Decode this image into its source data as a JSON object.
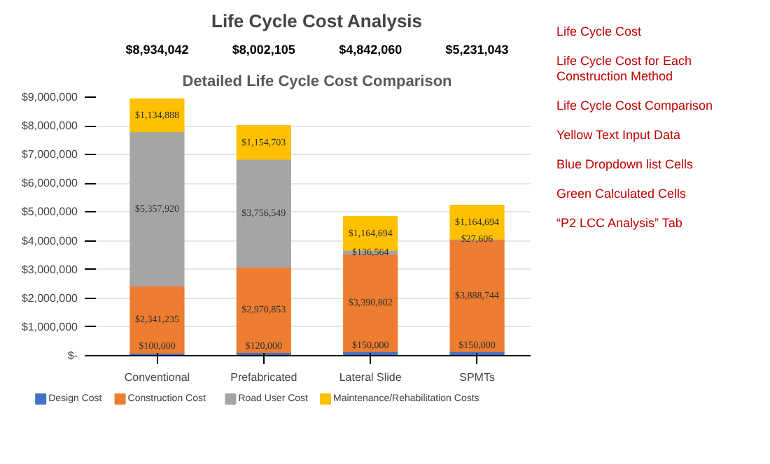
{
  "chart_data": {
    "type": "bar",
    "stacked": true,
    "title": "Life Cycle Cost Analysis",
    "subtitle": "Detailed Life Cycle Cost Comparison",
    "categories": [
      "Conventional",
      "Prefabricated",
      "Lateral Slide",
      "SPMTs"
    ],
    "series": [
      {
        "name": "Design Cost",
        "color": "#4472c4",
        "values": [
          100000,
          120000,
          150000,
          150000
        ],
        "value_labels": [
          "$100,000",
          "$120,000",
          "$150,000",
          "$150,000"
        ]
      },
      {
        "name": "Construction Cost",
        "color": "#ed7d31",
        "values": [
          2341235,
          2970853,
          3390802,
          3888744
        ],
        "value_labels": [
          "$2,341,235",
          "$2,970,853",
          "$3,390,802",
          "$3,888,744"
        ]
      },
      {
        "name": "Road User Cost",
        "color": "#a5a5a5",
        "values": [
          5357920,
          3756549,
          136564,
          27606
        ],
        "value_labels": [
          "$5,357,920",
          "$3,756,549",
          "$136,564",
          "$27,606"
        ]
      },
      {
        "name": "Maintenance/Rehabilitation Costs",
        "color": "#ffc000",
        "values": [
          1134888,
          1154703,
          1164694,
          1164694
        ],
        "value_labels": [
          "$1,134,888",
          "$1,154,703",
          "$1,164,694",
          "$1,164,694"
        ]
      }
    ],
    "ylim": [
      0,
      9000000
    ],
    "yticks": [
      {
        "value": 0,
        "label": "$-"
      },
      {
        "value": 1000000,
        "label": "$1,000,000"
      },
      {
        "value": 2000000,
        "label": "$2,000,000"
      },
      {
        "value": 3000000,
        "label": "$3,000,000"
      },
      {
        "value": 4000000,
        "label": "$4,000,000"
      },
      {
        "value": 5000000,
        "label": "$5,000,000"
      },
      {
        "value": 6000000,
        "label": "$6,000,000"
      },
      {
        "value": 7000000,
        "label": "$7,000,000"
      },
      {
        "value": 8000000,
        "label": "$8,000,000"
      },
      {
        "value": 9000000,
        "label": "$9,000,000"
      }
    ],
    "grid": "y",
    "legend": "bottom",
    "annotations": [
      "$8,934,042",
      "$8,002,105",
      "$4,842,060",
      "$5,231,043",
      "Life Cycle Cost",
      "Life Cycle Cost for Each Construction Method",
      "Life Cycle Cost Comparison",
      "Yellow Text Input Data",
      "Blue Dropdown list Cells",
      "Green Calculated Cells",
      "“P2 LCC Analysis” Tab"
    ]
  }
}
